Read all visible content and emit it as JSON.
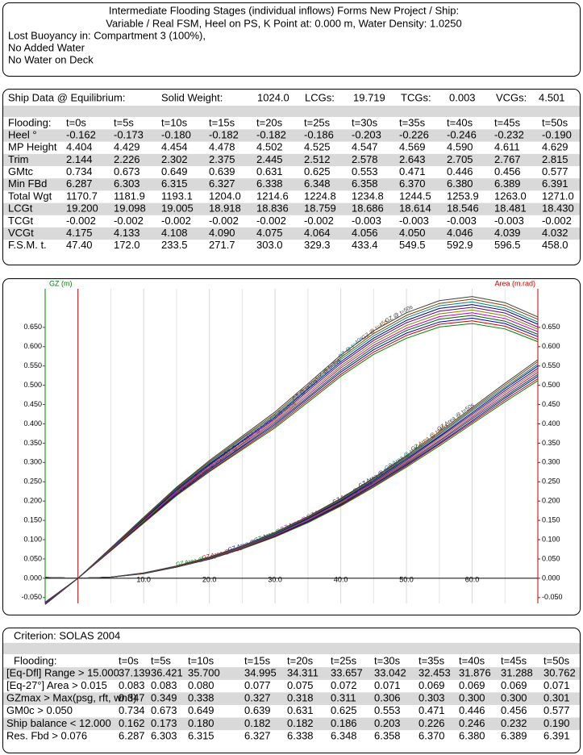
{
  "header": {
    "title_lines": [
      "Intermediate Flooding Stages (individual inflows) Forms New Project / Ship:",
      "Variable / Real FSM, Heel on PS, K Point at: 0.000 m, Water Density: 1.0250"
    ],
    "details": [
      "Lost Buoyancy in: Compartment 3 (100%),",
      "No Added Water",
      "No Water on Deck"
    ]
  },
  "ship_data": {
    "summary": [
      "Ship Data @ Equilibrium:",
      "Solid Weight:",
      "1024.0",
      "LCGs:",
      "19.719",
      "TCGs:",
      "0.003",
      "VCGs:",
      "4.501"
    ],
    "columns": [
      "Flooding:",
      "t=0s",
      "t=5s",
      "t=10s",
      "t=15s",
      "t=20s",
      "t=25s",
      "t=30s",
      "t=35s",
      "t=40s",
      "t=45s",
      "t=50s"
    ],
    "rows": [
      {
        "label": "Heel °",
        "values": [
          "-0.162",
          "-0.173",
          "-0.180",
          "-0.182",
          "-0.182",
          "-0.186",
          "-0.203",
          "-0.226",
          "-0.246",
          "-0.232",
          "-0.190"
        ]
      },
      {
        "label": "MP Height",
        "values": [
          "4.404",
          "4.429",
          "4.454",
          "4.478",
          "4.502",
          "4.525",
          "4.547",
          "4.569",
          "4.590",
          "4.611",
          "4.629"
        ]
      },
      {
        "label": "Trim",
        "values": [
          "2.144",
          "2.226",
          "2.302",
          "2.375",
          "2.445",
          "2.512",
          "2.578",
          "2.643",
          "2.705",
          "2.767",
          "2.815"
        ]
      },
      {
        "label": "GMtc",
        "values": [
          "0.734",
          "0.673",
          "0.649",
          "0.639",
          "0.631",
          "0.625",
          "0.553",
          "0.471",
          "0.446",
          "0.456",
          "0.577"
        ]
      },
      {
        "label": "Min FBd",
        "values": [
          "6.287",
          "6.303",
          "6.315",
          "6.327",
          "6.338",
          "6.348",
          "6.358",
          "6.370",
          "6.380",
          "6.389",
          "6.391"
        ]
      },
      {
        "label": "Total Wgt",
        "values": [
          "1170.7",
          "1181.9",
          "1193.1",
          "1204.0",
          "1214.6",
          "1224.8",
          "1234.8",
          "1244.5",
          "1253.9",
          "1263.0",
          "1271.0"
        ]
      },
      {
        "label": "LCGt",
        "values": [
          "19.200",
          "19.098",
          "19.005",
          "18.918",
          "18.836",
          "18.759",
          "18.686",
          "18.614",
          "18.546",
          "18.481",
          "18.430"
        ]
      },
      {
        "label": "TCGt",
        "values": [
          "-0.002",
          "-0.002",
          "-0.002",
          "-0.002",
          "-0.002",
          "-0.002",
          "-0.003",
          "-0.003",
          "-0.003",
          "-0.003",
          "-0.002"
        ]
      },
      {
        "label": "VCGt",
        "values": [
          "4.175",
          "4.133",
          "4.108",
          "4.090",
          "4.075",
          "4.064",
          "4.056",
          "4.050",
          "4.046",
          "4.039",
          "4.032"
        ]
      },
      {
        "label": "F.S.M. t.",
        "values": [
          "47.40",
          "172.0",
          "233.5",
          "271.7",
          "303.0",
          "329.3",
          "433.4",
          "549.5",
          "592.9",
          "596.5",
          "458.0"
        ]
      }
    ]
  },
  "chart_data": {
    "type": "line",
    "y_label": "GZ (m)",
    "y2_label": "Area (m.rad)",
    "x": [
      -5,
      0,
      5,
      10,
      15,
      20,
      25,
      30,
      35,
      40,
      45,
      50,
      55,
      60,
      65,
      70
    ],
    "xlim": [
      -5,
      70
    ],
    "xticks": [
      {
        "value": 10,
        "label": "10.0"
      },
      {
        "value": 20,
        "label": "20.0"
      },
      {
        "value": 30,
        "label": "30.0"
      },
      {
        "value": 40,
        "label": "40.0"
      },
      {
        "value": 50,
        "label": "50.0"
      },
      {
        "value": 60,
        "label": "60.0"
      }
    ],
    "x_minor_grid": [
      5,
      15,
      25,
      35,
      45,
      55,
      65
    ],
    "ylim": [
      -0.065,
      0.75
    ],
    "yticks": [
      {
        "value": -0.05,
        "label": "-0.050"
      },
      {
        "value": 0,
        "label": "0.000"
      },
      {
        "value": 0.05,
        "label": "0.050"
      },
      {
        "value": 0.1,
        "label": "0.100"
      },
      {
        "value": 0.15,
        "label": "0.150"
      },
      {
        "value": 0.2,
        "label": "0.200"
      },
      {
        "value": 0.25,
        "label": "0.250"
      },
      {
        "value": 0.3,
        "label": "0.300"
      },
      {
        "value": 0.35,
        "label": "0.350"
      },
      {
        "value": 0.4,
        "label": "0.400"
      },
      {
        "value": 0.45,
        "label": "0.450"
      },
      {
        "value": 0.5,
        "label": "0.500"
      },
      {
        "value": 0.55,
        "label": "0.550"
      },
      {
        "value": 0.6,
        "label": "0.600"
      },
      {
        "value": 0.65,
        "label": "0.650"
      }
    ],
    "y2lim": [
      -0.065,
      0.75
    ],
    "y2ticks": [
      {
        "value": -0.05,
        "label": "-0.050"
      },
      {
        "value": 0,
        "label": "0.000"
      },
      {
        "value": 0.05,
        "label": "0.050"
      },
      {
        "value": 0.1,
        "label": "0.100"
      },
      {
        "value": 0.15,
        "label": "0.150"
      },
      {
        "value": 0.2,
        "label": "0.200"
      },
      {
        "value": 0.25,
        "label": "0.250"
      },
      {
        "value": 0.3,
        "label": "0.300"
      },
      {
        "value": 0.35,
        "label": "0.350"
      },
      {
        "value": 0.4,
        "label": "0.400"
      },
      {
        "value": 0.45,
        "label": "0.450"
      },
      {
        "value": 0.5,
        "label": "0.500"
      },
      {
        "value": 0.55,
        "label": "0.550"
      },
      {
        "value": 0.6,
        "label": "0.600"
      },
      {
        "value": 0.65,
        "label": "0.650"
      }
    ],
    "grid": true,
    "series": [
      {
        "name": "GZ @ t=0s",
        "color": "#008000",
        "values": [
          -0.062,
          0,
          0.071,
          0.143,
          0.214,
          0.276,
          0.333,
          0.39,
          0.456,
          0.523,
          0.58,
          0.622,
          0.651,
          0.66,
          0.646,
          0.613
        ]
      },
      {
        "name": "GZ @ t=5s",
        "color": "#c00000",
        "values": [
          -0.062,
          0,
          0.072,
          0.144,
          0.216,
          0.278,
          0.336,
          0.394,
          0.461,
          0.528,
          0.586,
          0.629,
          0.658,
          0.667,
          0.653,
          0.619
        ]
      },
      {
        "name": "GZ @ t=10s",
        "color": "#0000c0",
        "values": [
          -0.063,
          0,
          0.073,
          0.146,
          0.218,
          0.281,
          0.34,
          0.398,
          0.466,
          0.534,
          0.592,
          0.635,
          0.664,
          0.674,
          0.66,
          0.626
        ]
      },
      {
        "name": "GZ @ t=15s",
        "color": "#006000",
        "values": [
          -0.064,
          0,
          0.074,
          0.147,
          0.221,
          0.284,
          0.343,
          0.402,
          0.47,
          0.539,
          0.598,
          0.642,
          0.671,
          0.681,
          0.666,
          0.632
        ]
      },
      {
        "name": "GZ @ t=20s",
        "color": "#c000c0",
        "values": [
          -0.064,
          0,
          0.074,
          0.149,
          0.223,
          0.287,
          0.347,
          0.406,
          0.475,
          0.545,
          0.604,
          0.648,
          0.678,
          0.688,
          0.673,
          0.639
        ]
      },
      {
        "name": "GZ @ t=25s",
        "color": "#808000",
        "values": [
          -0.065,
          0,
          0.075,
          0.15,
          0.225,
          0.29,
          0.35,
          0.41,
          0.48,
          0.55,
          0.61,
          0.655,
          0.685,
          0.695,
          0.68,
          0.645
        ]
      },
      {
        "name": "GZ @ t=30s",
        "color": "#600080",
        "values": [
          -0.066,
          0,
          0.076,
          0.152,
          0.227,
          0.293,
          0.354,
          0.414,
          0.485,
          0.556,
          0.616,
          0.662,
          0.692,
          0.702,
          0.687,
          0.651
        ]
      },
      {
        "name": "GZ @ t=35s",
        "color": "#000080",
        "values": [
          -0.066,
          0,
          0.077,
          0.153,
          0.23,
          0.296,
          0.357,
          0.418,
          0.49,
          0.561,
          0.622,
          0.668,
          0.699,
          0.709,
          0.694,
          0.658
        ]
      },
      {
        "name": "GZ @ t=40s",
        "color": "#008080",
        "values": [
          -0.067,
          0,
          0.077,
          0.155,
          0.232,
          0.299,
          0.361,
          0.422,
          0.494,
          0.567,
          0.628,
          0.675,
          0.706,
          0.716,
          0.7,
          0.664
        ]
      },
      {
        "name": "GZ @ t=45s",
        "color": "#804000",
        "values": [
          -0.068,
          0,
          0.078,
          0.156,
          0.234,
          0.302,
          0.364,
          0.426,
          0.499,
          0.572,
          0.634,
          0.681,
          0.712,
          0.723,
          0.707,
          0.671
        ]
      },
      {
        "name": "GZ @ t=50s",
        "color": "#404040",
        "values": [
          -0.068,
          0,
          0.079,
          0.158,
          0.236,
          0.305,
          0.368,
          0.431,
          0.504,
          0.578,
          0.641,
          0.688,
          0.719,
          0.73,
          0.714,
          0.677
        ]
      },
      {
        "name": "GZ Area @ t=0s",
        "color": "#008000",
        "axis": "y2",
        "values": [
          0.002,
          0,
          0.003,
          0.012,
          0.029,
          0.049,
          0.076,
          0.107,
          0.144,
          0.187,
          0.236,
          0.288,
          0.343,
          0.4,
          0.457,
          0.512
        ]
      },
      {
        "name": "GZ Area @ t=5s",
        "color": "#c00000",
        "axis": "y2",
        "values": [
          0.002,
          0,
          0.003,
          0.012,
          0.029,
          0.05,
          0.077,
          0.108,
          0.146,
          0.189,
          0.238,
          0.291,
          0.347,
          0.404,
          0.462,
          0.517
        ]
      },
      {
        "name": "GZ Area @ t=10s",
        "color": "#0000c0",
        "axis": "y2",
        "values": [
          0.002,
          0,
          0.003,
          0.013,
          0.029,
          0.05,
          0.078,
          0.11,
          0.147,
          0.191,
          0.241,
          0.294,
          0.35,
          0.408,
          0.467,
          0.523
        ]
      },
      {
        "name": "GZ Area @ t=15s",
        "color": "#006000",
        "axis": "y2",
        "values": [
          0.002,
          0,
          0.003,
          0.013,
          0.029,
          0.051,
          0.078,
          0.111,
          0.149,
          0.193,
          0.243,
          0.297,
          0.354,
          0.413,
          0.471,
          0.528
        ]
      },
      {
        "name": "GZ Area @ t=20s",
        "color": "#c000c0",
        "axis": "y2",
        "values": [
          0.002,
          0,
          0.003,
          0.013,
          0.03,
          0.051,
          0.079,
          0.112,
          0.15,
          0.195,
          0.246,
          0.3,
          0.357,
          0.417,
          0.476,
          0.534
        ]
      },
      {
        "name": "GZ Area @ t=25s",
        "color": "#808000",
        "axis": "y2",
        "values": [
          0.002,
          0,
          0.003,
          0.013,
          0.03,
          0.052,
          0.08,
          0.113,
          0.152,
          0.197,
          0.248,
          0.303,
          0.361,
          0.421,
          0.481,
          0.539
        ]
      },
      {
        "name": "GZ Area @ t=30s",
        "color": "#600080",
        "axis": "y2",
        "values": [
          0.002,
          0,
          0.003,
          0.013,
          0.03,
          0.053,
          0.081,
          0.114,
          0.154,
          0.199,
          0.25,
          0.306,
          0.365,
          0.425,
          0.486,
          0.544
        ]
      },
      {
        "name": "GZ Area @ t=35s",
        "color": "#000080",
        "axis": "y2",
        "values": [
          0.002,
          0,
          0.003,
          0.013,
          0.031,
          0.053,
          0.082,
          0.115,
          0.155,
          0.201,
          0.253,
          0.309,
          0.368,
          0.429,
          0.491,
          0.55
        ]
      },
      {
        "name": "GZ Area @ t=40s",
        "color": "#008080",
        "axis": "y2",
        "values": [
          0.002,
          0,
          0.003,
          0.013,
          0.031,
          0.054,
          0.082,
          0.116,
          0.157,
          0.203,
          0.255,
          0.312,
          0.372,
          0.434,
          0.495,
          0.555
        ]
      },
      {
        "name": "GZ Area @ t=45s",
        "color": "#804000",
        "axis": "y2",
        "values": [
          0.002,
          0,
          0.003,
          0.014,
          0.031,
          0.054,
          0.083,
          0.118,
          0.158,
          0.205,
          0.258,
          0.315,
          0.375,
          0.438,
          0.5,
          0.561
        ]
      },
      {
        "name": "GZ Area @ t=50s",
        "color": "#404040",
        "axis": "y2",
        "values": [
          0.002,
          0,
          0.003,
          0.014,
          0.032,
          0.055,
          0.084,
          0.119,
          0.16,
          0.207,
          0.26,
          0.318,
          0.379,
          0.442,
          0.505,
          0.566
        ]
      }
    ]
  },
  "criterion": {
    "title": "Criterion: SOLAS 2004",
    "columns": [
      "Flooding:",
      "t=0s",
      "t=5s",
      "t=10s",
      "t=15s",
      "t=20s",
      "t=25s",
      "t=30s",
      "t=35s",
      "t=40s",
      "t=45s",
      "t=50s"
    ],
    "rows": [
      {
        "label": "[Eq-Dfl] Range > 15.000",
        "values": [
          "37.139",
          "36.421",
          "35.700",
          "34.995",
          "34.311",
          "33.657",
          "33.042",
          "32.453",
          "31.876",
          "31.288",
          "30.762"
        ]
      },
      {
        "label": "[Eq-27°] Area > 0.015",
        "values": [
          "0.083",
          "0.083",
          "0.080",
          "0.077",
          "0.075",
          "0.072",
          "0.071",
          "0.069",
          "0.069",
          "0.069",
          "0.071"
        ]
      },
      {
        "label": "GZmax > Max(psg, rft, wnd)",
        "values": [
          "0.347",
          "0.349",
          "0.338",
          "0.327",
          "0.318",
          "0.311",
          "0.306",
          "0.303",
          "0.300",
          "0.300",
          "0.301"
        ]
      },
      {
        "label": "GM0c > 0.050",
        "values": [
          "0.734",
          "0.673",
          "0.649",
          "0.639",
          "0.631",
          "0.625",
          "0.553",
          "0.471",
          "0.446",
          "0.456",
          "0.577"
        ]
      },
      {
        "label": "Ship balance < 12.000",
        "values": [
          "0.162",
          "0.173",
          "0.180",
          "0.182",
          "0.182",
          "0.186",
          "0.203",
          "0.226",
          "0.246",
          "0.232",
          "0.190"
        ]
      },
      {
        "label": "Res. Fbd > 0.076",
        "values": [
          "6.287",
          "6.303",
          "6.315",
          "6.327",
          "6.338",
          "6.348",
          "6.358",
          "6.370",
          "6.380",
          "6.389",
          "6.391"
        ]
      }
    ]
  }
}
